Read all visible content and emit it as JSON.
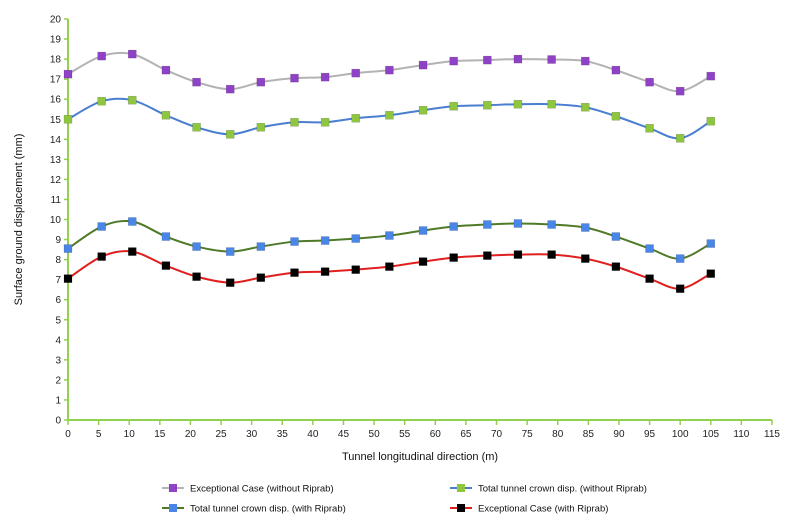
{
  "chart_data": {
    "type": "line",
    "title": "",
    "xlabel": "Tunnel longitudinal direction (m)",
    "ylabel": "Surface ground displacement (mm)",
    "xlim": [
      0,
      115
    ],
    "ylim": [
      0,
      20
    ],
    "x_ticks": [
      0,
      5,
      10,
      15,
      20,
      25,
      30,
      35,
      40,
      45,
      50,
      55,
      60,
      65,
      70,
      75,
      80,
      85,
      90,
      95,
      100,
      105,
      110,
      115
    ],
    "y_ticks": [
      0,
      1,
      2,
      3,
      4,
      5,
      6,
      7,
      8,
      9,
      10,
      11,
      12,
      13,
      14,
      15,
      16,
      17,
      18,
      19,
      20
    ],
    "grid": false,
    "legend_position": "bottom",
    "x": [
      0,
      5.5,
      10.5,
      16,
      21,
      26.5,
      31.5,
      37,
      42,
      47,
      52.5,
      58,
      63,
      68.5,
      73.5,
      79,
      84.5,
      89.5,
      95,
      100,
      105
    ],
    "series": [
      {
        "name": "Exceptional Case (without Riprab)",
        "marker_color": "#8f41c8",
        "line_color": "#b3b3b3",
        "values": [
          17.25,
          18.15,
          18.25,
          17.45,
          16.85,
          16.5,
          16.85,
          17.05,
          17.1,
          17.3,
          17.45,
          17.7,
          17.9,
          17.95,
          18.0,
          17.98,
          17.9,
          17.45,
          16.85,
          16.4,
          17.15
        ]
      },
      {
        "name": "Total tunnel crown disp. (without Riprab)",
        "marker_color": "#8ec63f",
        "line_color": "#4a7ed0",
        "values": [
          15.0,
          15.9,
          15.95,
          15.2,
          14.6,
          14.25,
          14.6,
          14.85,
          14.85,
          15.05,
          15.2,
          15.45,
          15.65,
          15.7,
          15.75,
          15.75,
          15.6,
          15.15,
          14.55,
          14.05,
          14.9
        ]
      },
      {
        "name": "Total tunnel crown disp. (with Riprab)",
        "marker_color": "#4a86e8",
        "line_color": "#4f7a28",
        "values": [
          8.55,
          9.65,
          9.9,
          9.15,
          8.65,
          8.4,
          8.65,
          8.9,
          8.95,
          9.05,
          9.2,
          9.45,
          9.65,
          9.75,
          9.8,
          9.75,
          9.6,
          9.15,
          8.55,
          8.05,
          8.8
        ]
      },
      {
        "name": "Exceptional Case (with Riprab)",
        "marker_color": "#000000",
        "line_color": "#e02020",
        "values": [
          7.05,
          8.15,
          8.4,
          7.7,
          7.15,
          6.85,
          7.1,
          7.35,
          7.4,
          7.5,
          7.65,
          7.9,
          8.1,
          8.2,
          8.25,
          8.25,
          8.05,
          7.65,
          7.05,
          6.55,
          7.3
        ]
      }
    ]
  }
}
